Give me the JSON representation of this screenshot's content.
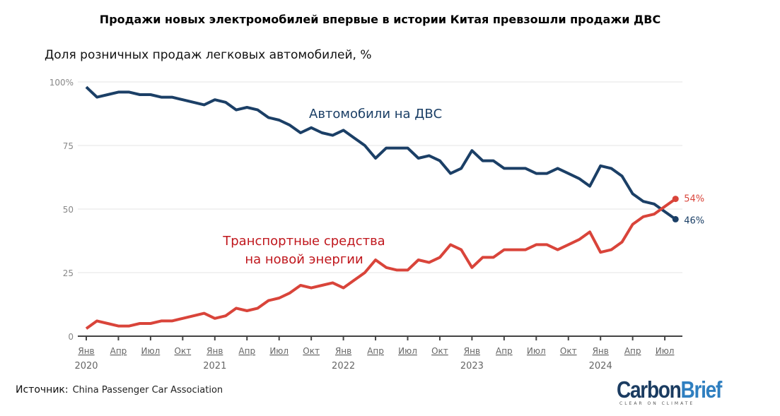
{
  "title": "Продажи новых электромобилей впервые в истории Китая превзошли продажи ДВС",
  "source_label": "Источник:",
  "source_value": "China Passenger Car Association",
  "logo": {
    "part1": "Carbon",
    "part2": "Brief",
    "tagline": "CLEAR ON CLIMATE"
  },
  "chart_data": {
    "type": "line",
    "title": "Продажи новых электромобилей впервые в истории Китая превзошли продажи ДВС",
    "ylabel": "Доля розничных продаж легковых автомобилей, %",
    "ylim": [
      0,
      100
    ],
    "yticks": [
      0,
      25,
      50,
      75,
      100
    ],
    "ytick_labels": [
      "0",
      "25",
      "50",
      "75",
      "100%"
    ],
    "xticks": [
      {
        "index": 0,
        "month": "Янв",
        "year": "2020"
      },
      {
        "index": 3,
        "month": "Апр",
        "year": ""
      },
      {
        "index": 6,
        "month": "Июл",
        "year": ""
      },
      {
        "index": 9,
        "month": "Окт",
        "year": ""
      },
      {
        "index": 12,
        "month": "Янв",
        "year": "2021"
      },
      {
        "index": 15,
        "month": "Апр",
        "year": ""
      },
      {
        "index": 18,
        "month": "Июл",
        "year": ""
      },
      {
        "index": 21,
        "month": "Окт",
        "year": ""
      },
      {
        "index": 24,
        "month": "Янв",
        "year": "2022"
      },
      {
        "index": 27,
        "month": "Апр",
        "year": ""
      },
      {
        "index": 30,
        "month": "Июл",
        "year": ""
      },
      {
        "index": 33,
        "month": "Окт",
        "year": ""
      },
      {
        "index": 36,
        "month": "Янв",
        "year": "2023"
      },
      {
        "index": 39,
        "month": "Апр",
        "year": ""
      },
      {
        "index": 42,
        "month": "Июл",
        "year": ""
      },
      {
        "index": 45,
        "month": "Окт",
        "year": ""
      },
      {
        "index": 48,
        "month": "Янв",
        "year": "2024"
      },
      {
        "index": 51,
        "month": "Апр",
        "year": ""
      },
      {
        "index": 54,
        "month": "Июл",
        "year": ""
      }
    ],
    "x_range": "Jan 2020 – Aug 2024 (monthly)",
    "grid": true,
    "series": [
      {
        "name": "Автомобили на ДВС",
        "color": "#1b3f66",
        "end_label": "46%",
        "values": [
          98,
          94,
          95,
          96,
          96,
          95,
          95,
          94,
          94,
          93,
          92,
          91,
          93,
          92,
          89,
          90,
          89,
          86,
          85,
          83,
          80,
          82,
          80,
          79,
          81,
          78,
          75,
          70,
          74,
          74,
          74,
          70,
          71,
          69,
          64,
          66,
          73,
          69,
          69,
          66,
          66,
          66,
          64,
          64,
          66,
          64,
          62,
          59,
          67,
          66,
          63,
          56,
          53,
          52,
          49,
          46
        ]
      },
      {
        "name_line1": "Транспортные средства",
        "name_line2": "на новой энергии",
        "color": "#d9443a",
        "label_color": "#c0171d",
        "end_label": "54%",
        "values": [
          3,
          6,
          5,
          4,
          4,
          5,
          5,
          6,
          6,
          7,
          8,
          9,
          7,
          8,
          11,
          10,
          11,
          14,
          15,
          17,
          20,
          19,
          20,
          21,
          19,
          22,
          25,
          30,
          27,
          26,
          26,
          30,
          29,
          31,
          36,
          34,
          27,
          31,
          31,
          34,
          34,
          34,
          36,
          36,
          34,
          36,
          38,
          41,
          33,
          34,
          37,
          44,
          47,
          48,
          51,
          54
        ]
      }
    ]
  }
}
